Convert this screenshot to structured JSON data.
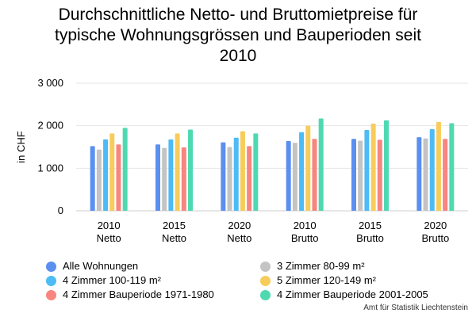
{
  "chart_data": {
    "type": "bar",
    "title_lines": [
      "Durchschnittliche Netto- und Bruttomietpreise für",
      "typische Wohnungsgrössen und Bauperioden seit",
      "2010"
    ],
    "ylabel": "in CHF",
    "xlabel": "",
    "ylim": [
      0,
      3000
    ],
    "yticks": [
      0,
      1000,
      2000,
      3000
    ],
    "ytick_labels": [
      "0",
      "1 000",
      "2 000",
      "3 000"
    ],
    "grid": true,
    "legend_position": "bottom",
    "categories": [
      [
        "2010",
        "Netto"
      ],
      [
        "2015",
        "Netto"
      ],
      [
        "2020",
        "Netto"
      ],
      [
        "2010",
        "Brutto"
      ],
      [
        "2015",
        "Brutto"
      ],
      [
        "2020",
        "Brutto"
      ]
    ],
    "series": [
      {
        "name": "Alle Wohnungen",
        "color": "#5b8ff0",
        "values": [
          1520,
          1560,
          1610,
          1640,
          1690,
          1730
        ]
      },
      {
        "name": "3 Zimmer 80-99 m²",
        "color": "#c4c4c4",
        "values": [
          1440,
          1480,
          1500,
          1600,
          1650,
          1700
        ]
      },
      {
        "name": "4 Zimmer 100-119 m²",
        "color": "#4dbbf5",
        "values": [
          1680,
          1680,
          1720,
          1850,
          1900,
          1920
        ]
      },
      {
        "name": "5 Zimmer 120-149 m²",
        "color": "#f8cc5a",
        "values": [
          1820,
          1820,
          1870,
          2000,
          2050,
          2090
        ]
      },
      {
        "name": "4 Zimmer Bauperiode 1971-1980",
        "color": "#f8857f",
        "values": [
          1560,
          1490,
          1520,
          1690,
          1670,
          1690
        ]
      },
      {
        "name": "4 Zimmer Bauperiode 2001-2005",
        "color": "#4fd9b1",
        "values": [
          1950,
          1910,
          1820,
          2170,
          2130,
          2060
        ]
      }
    ],
    "legend_order": [
      0,
      1,
      2,
      3,
      4,
      5
    ]
  },
  "source": "Amt für Statistik Liechtenstein"
}
